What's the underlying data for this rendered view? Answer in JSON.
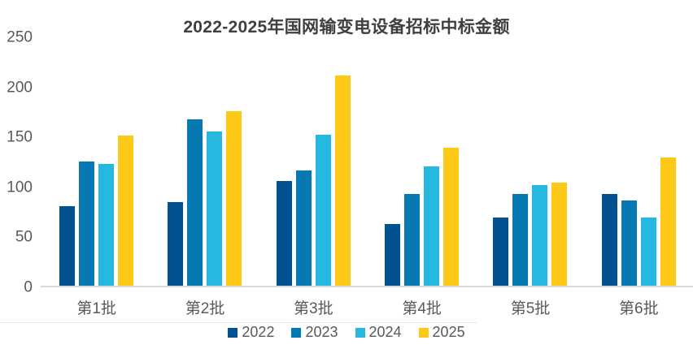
{
  "title": "2022-2025年国网输变电设备招标中标金额",
  "colors": {
    "series_2022": "#01528F",
    "series_2023": "#0678B2",
    "series_2024": "#27B8E0",
    "series_2025": "#FEC817",
    "axis_line": "#D9D9D9",
    "axis_text": "#595959",
    "title_text": "#3F3F3F"
  },
  "chart_data": {
    "type": "bar",
    "title": "2022-2025年国网输变电设备招标中标金额",
    "categories": [
      "第1批",
      "第2批",
      "第3批",
      "第4批",
      "第5批",
      "第6批"
    ],
    "series": [
      {
        "name": "2022",
        "color": "#01528F",
        "values": [
          81,
          85,
          106,
          63,
          70,
          93
        ]
      },
      {
        "name": "2023",
        "color": "#0678B2",
        "values": [
          126,
          168,
          117,
          93,
          93,
          87
        ]
      },
      {
        "name": "2024",
        "color": "#27B8E0",
        "values": [
          123,
          156,
          153,
          121,
          102,
          70
        ]
      },
      {
        "name": "2025",
        "color": "#FEC817",
        "values": [
          152,
          176,
          212,
          140,
          105,
          130
        ]
      }
    ],
    "xlabel": "",
    "ylabel": "",
    "ylim": [
      0,
      250
    ],
    "yticks": [
      0,
      50,
      100,
      150,
      200,
      250
    ],
    "grid": false,
    "legend_position": "bottom"
  }
}
